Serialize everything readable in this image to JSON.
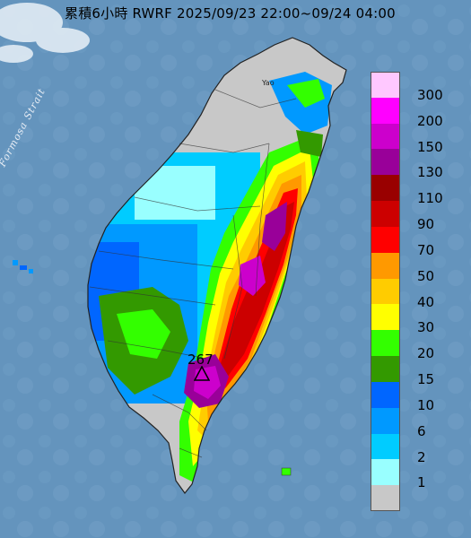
{
  "title": "累積6小時 RWRF 2025/09/23 22:00~09/24 04:00",
  "strait_label": "Formosa Strait",
  "max_value": "267",
  "place_label": "Yao",
  "colors": {
    "sea": "#5e8fb8",
    "land_no_rain": "#c8c8c8"
  },
  "legend": {
    "label_above_each_swatch": true,
    "items": [
      {
        "label": "300",
        "color": "#ffc8ff"
      },
      {
        "label": "200",
        "color": "#ff00ff"
      },
      {
        "label": "150",
        "color": "#cc00cc"
      },
      {
        "label": "130",
        "color": "#990099"
      },
      {
        "label": "110",
        "color": "#990000"
      },
      {
        "label": "90",
        "color": "#cc0000"
      },
      {
        "label": "70",
        "color": "#ff0000"
      },
      {
        "label": "50",
        "color": "#ff9900"
      },
      {
        "label": "40",
        "color": "#ffcc00"
      },
      {
        "label": "30",
        "color": "#ffff00"
      },
      {
        "label": "20",
        "color": "#33ff00"
      },
      {
        "label": "15",
        "color": "#339900"
      },
      {
        "label": "10",
        "color": "#0066ff"
      },
      {
        "label": "6",
        "color": "#0099ff"
      },
      {
        "label": "2",
        "color": "#00ccff"
      },
      {
        "label": "1",
        "color": "#99ffff"
      },
      {
        "label": "",
        "color": "#c8c8c8"
      }
    ]
  }
}
